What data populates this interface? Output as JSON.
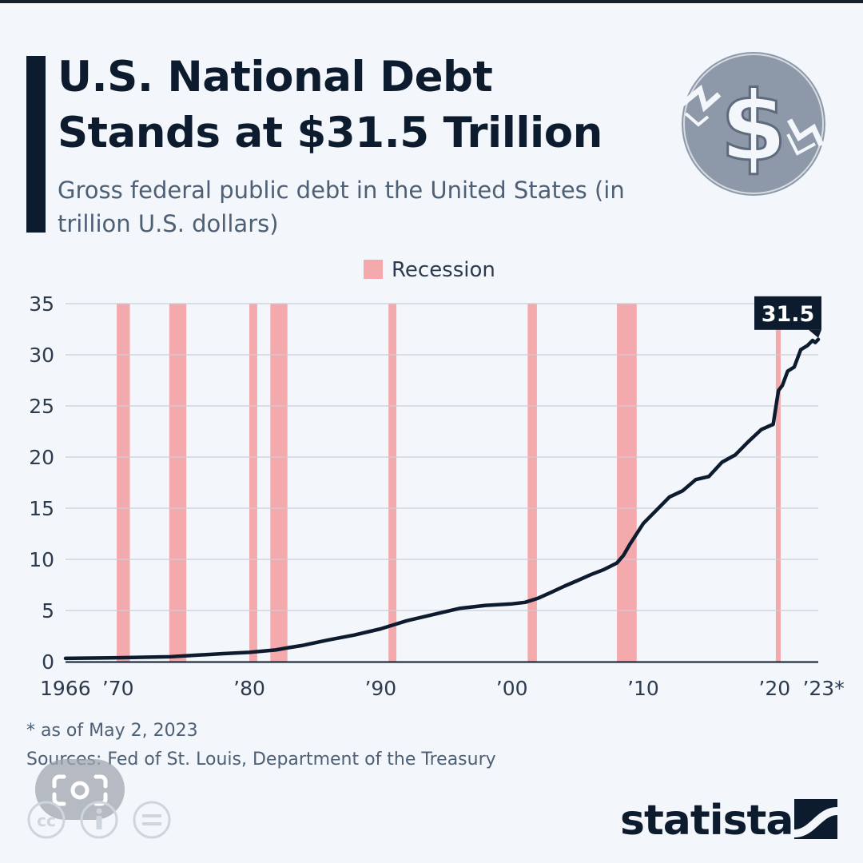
{
  "title": "U.S. National Debt Stands at $31.5 Trillion",
  "subtitle": "Gross federal public debt in the United States (in trillion U.S. dollars)",
  "footnote": "* as of May 2, 2023",
  "sources": "Sources: Fed of St. Louis, Department of the Treasury",
  "brand": "statista",
  "colors": {
    "title": "#0d1b2e",
    "line": "#0d1b2e",
    "recession": "#f4a9ad",
    "grid": "#c9ced6",
    "text": "#4d6075"
  },
  "icons": {
    "coin": "dollar-coin-icon",
    "lens": "image-search-lens-icon",
    "license": [
      "cc-icon",
      "info-icon",
      "equals-icon"
    ]
  },
  "chart_data": {
    "type": "line",
    "title": "U.S. National Debt Stands at $31.5 Trillion",
    "ylabel": "trillion U.S. dollars",
    "xlim": [
      1966,
      2023.33
    ],
    "ylim": [
      0,
      35
    ],
    "yticks": [
      0,
      5,
      10,
      15,
      20,
      25,
      30,
      35
    ],
    "xticks": [
      {
        "value": 1966,
        "label": "1966"
      },
      {
        "value": 1970,
        "label": "’70"
      },
      {
        "value": 1980,
        "label": "’80"
      },
      {
        "value": 1990,
        "label": "’90"
      },
      {
        "value": 2000,
        "label": "’00"
      },
      {
        "value": 2010,
        "label": "’10"
      },
      {
        "value": 2020,
        "label": "’20"
      },
      {
        "value": 2023,
        "label": "’23*"
      }
    ],
    "legend": {
      "label": "Recession",
      "position": "top-center"
    },
    "recessions": [
      [
        1969.9,
        1970.9
      ],
      [
        1973.9,
        1975.2
      ],
      [
        1980.0,
        1980.6
      ],
      [
        1981.6,
        1982.9
      ],
      [
        1990.6,
        1991.2
      ],
      [
        2001.2,
        2001.9
      ],
      [
        2008.0,
        2009.5
      ],
      [
        2020.1,
        2020.4
      ]
    ],
    "callout": {
      "label": "31.5",
      "x": 2023.33,
      "y": 31.5
    },
    "series": [
      {
        "name": "Gross federal public debt",
        "x": [
          1966,
          1968,
          1970,
          1972,
          1974,
          1976,
          1978,
          1980,
          1982,
          1983,
          1984,
          1986,
          1988,
          1990,
          1991,
          1992,
          1994,
          1996,
          1998,
          2000,
          2001,
          2002,
          2003,
          2004,
          2005,
          2006,
          2007,
          2008,
          2008.5,
          2009,
          2010,
          2011,
          2012,
          2013,
          2014,
          2015,
          2016,
          2017,
          2018,
          2019,
          2019.9,
          2020.3,
          2020.6,
          2021,
          2021.5,
          2022,
          2022.5,
          2022.9,
          2023.1,
          2023.33
        ],
        "values": [
          0.32,
          0.35,
          0.38,
          0.43,
          0.48,
          0.63,
          0.78,
          0.91,
          1.14,
          1.37,
          1.57,
          2.12,
          2.6,
          3.2,
          3.6,
          4.0,
          4.6,
          5.2,
          5.5,
          5.65,
          5.8,
          6.2,
          6.78,
          7.38,
          7.93,
          8.5,
          9.0,
          9.65,
          10.4,
          11.5,
          13.5,
          14.8,
          16.1,
          16.7,
          17.8,
          18.1,
          19.5,
          20.2,
          21.5,
          22.7,
          23.2,
          26.5,
          27.0,
          28.4,
          28.8,
          30.5,
          30.9,
          31.4,
          31.2,
          31.5
        ]
      }
    ]
  }
}
